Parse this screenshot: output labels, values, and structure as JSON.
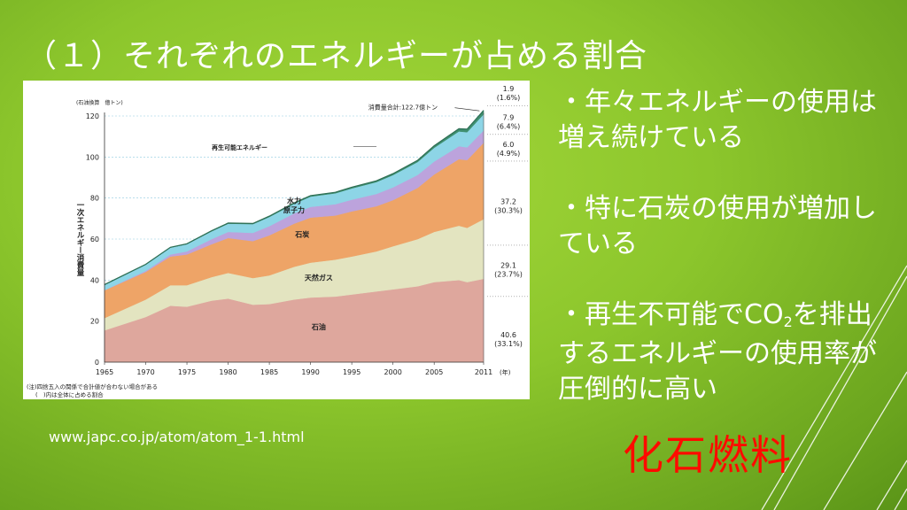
{
  "slide": {
    "title": "（１）それぞれのエネルギーが占める割合",
    "source_url": "www.japc.co.jp/atom/atom_1-1.html",
    "conclusion": "化石燃料",
    "bullets": [
      {
        "text": "・年々エネルギーの使用は増え続けている"
      },
      {
        "text": "・特に石炭の使用が増加している"
      },
      {
        "pre": "・再生不可能でCO",
        "sub": "2",
        "post": "を排出するエネルギーの使用率が圧倒的に高い"
      }
    ],
    "colors": {
      "accent_text": "#ff0a00",
      "background": "#8cc62c"
    }
  },
  "chart_data": {
    "type": "area",
    "unit_label": "(石油換算　億トン)",
    "ylabel": "一次エネルギー消費量",
    "xlabel_unit": "(年)",
    "total_label": "消費量合計:122.7億トン",
    "x_ticks": [
      1965,
      1970,
      1975,
      1980,
      1985,
      1990,
      1995,
      2000,
      2005,
      2011
    ],
    "y_ticks": [
      0,
      20,
      40,
      60,
      80,
      100,
      120
    ],
    "ylim": [
      0,
      120
    ],
    "xlim": [
      1965,
      2011
    ],
    "x": [
      1965,
      1970,
      1973,
      1975,
      1978,
      1980,
      1983,
      1985,
      1988,
      1990,
      1993,
      1995,
      1998,
      2000,
      2003,
      2005,
      2008,
      2009,
      2011
    ],
    "series": [
      {
        "name": "石油",
        "color": "#dea79d",
        "values": [
          15.5,
          22.0,
          27.5,
          27.0,
          30.0,
          31.0,
          28.0,
          28.3,
          30.5,
          31.5,
          32.0,
          33.0,
          34.5,
          35.5,
          37.0,
          39.0,
          40.0,
          39.0,
          40.6
        ]
      },
      {
        "name": "天然ガス",
        "color": "#e3e4c0",
        "values": [
          6.0,
          8.5,
          10.0,
          10.5,
          11.5,
          12.5,
          13.0,
          14.0,
          16.0,
          17.0,
          18.0,
          18.5,
          19.5,
          21.0,
          23.0,
          24.5,
          26.5,
          26.5,
          29.1
        ]
      },
      {
        "name": "石炭",
        "color": "#eea467",
        "values": [
          13.5,
          13.5,
          14.0,
          15.0,
          16.0,
          17.0,
          18.0,
          19.5,
          21.0,
          22.0,
          21.5,
          22.0,
          22.0,
          22.5,
          25.0,
          28.0,
          32.5,
          33.0,
          37.2
        ]
      },
      {
        "name": "原子力",
        "color": "#bca3dc",
        "values": [
          0.1,
          0.5,
          1.0,
          1.5,
          2.5,
          3.0,
          4.0,
          4.5,
          5.0,
          5.2,
          5.5,
          5.7,
          6.0,
          6.2,
          6.3,
          6.3,
          6.3,
          6.2,
          6.0
        ]
      },
      {
        "name": "水力",
        "color": "#8dd5e6",
        "values": [
          2.5,
          3.0,
          3.3,
          3.5,
          3.8,
          4.0,
          4.3,
          4.5,
          4.7,
          5.0,
          5.3,
          5.5,
          5.8,
          6.0,
          6.3,
          6.7,
          7.2,
          7.4,
          7.9
        ]
      },
      {
        "name": "再生可能エネルギー",
        "color": "#3f8f6f",
        "values": [
          0.2,
          0.2,
          0.2,
          0.2,
          0.3,
          0.3,
          0.3,
          0.4,
          0.4,
          0.5,
          0.5,
          0.6,
          0.6,
          0.7,
          0.8,
          1.0,
          1.3,
          1.5,
          1.9
        ]
      }
    ],
    "right_labels": [
      {
        "value": "1.9",
        "share": "(1.6%)",
        "series": "再生可能エネルギー"
      },
      {
        "value": "7.9",
        "share": "(6.4%)",
        "series": "水力"
      },
      {
        "value": "6.0",
        "share": "(4.9%)",
        "series": "原子力"
      },
      {
        "value": "37.2",
        "share": "(30.3%)",
        "series": "石炭"
      },
      {
        "value": "29.1",
        "share": "(23.7%)",
        "series": "天然ガス"
      },
      {
        "value": "40.6",
        "share": "(33.1%)",
        "series": "石油"
      }
    ],
    "notes": [
      "(注)四捨五入の関係で合計値が合わない場合がある",
      "(　)内は全体に占める割合"
    ],
    "grid": true,
    "legend": "inline"
  }
}
